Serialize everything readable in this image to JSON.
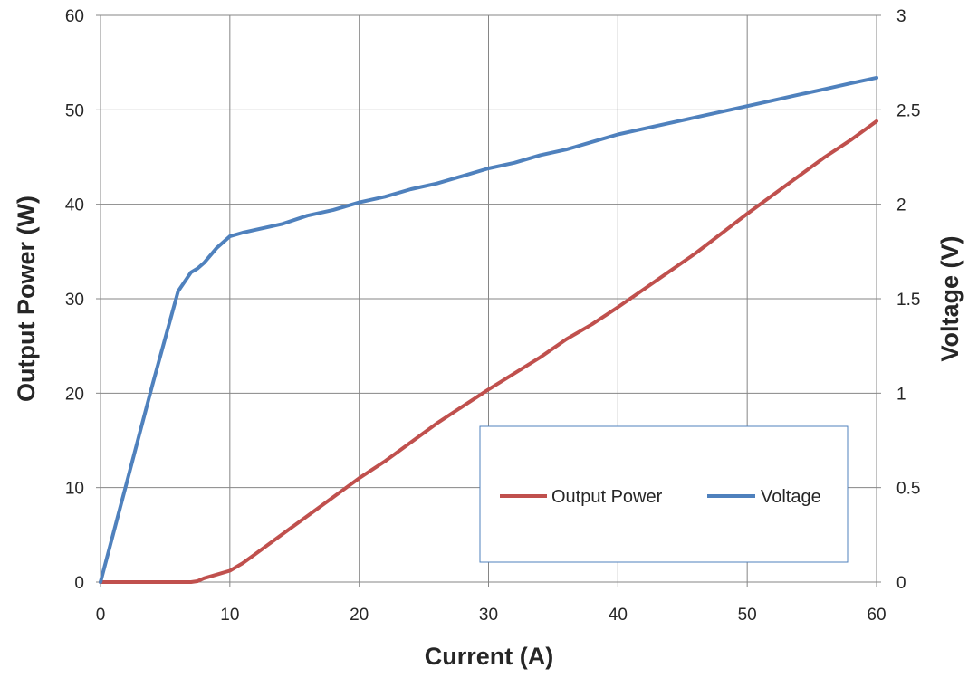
{
  "chart_data": {
    "type": "line",
    "xlabel": "Current (A)",
    "ylabel": "Output Power (W)",
    "y2label": "Voltage (V)",
    "xlim": [
      0,
      60
    ],
    "ylim": [
      0,
      60
    ],
    "y2lim": [
      0,
      3
    ],
    "xticks": [
      "0",
      "10",
      "20",
      "30",
      "40",
      "50",
      "60"
    ],
    "yticks": [
      "0",
      "10",
      "20",
      "30",
      "40",
      "50",
      "60"
    ],
    "y2ticks": [
      "0",
      "0.5",
      "1",
      "1.5",
      "2",
      "2.5",
      "3"
    ],
    "grid": true,
    "legend_position": "bottom-right",
    "series": [
      {
        "name": "Output Power",
        "axis": "left",
        "color": "#C0504D",
        "x": [
          0,
          2,
          4,
          6,
          7,
          7.5,
          8,
          9,
          10,
          11,
          12,
          14,
          16,
          18,
          20,
          22,
          24,
          26,
          28,
          30,
          32,
          34,
          36,
          38,
          40,
          42,
          44,
          46,
          48,
          50,
          52,
          54,
          56,
          58,
          60
        ],
        "y": [
          0,
          0,
          0,
          0,
          0,
          0.1,
          0.4,
          0.8,
          1.2,
          2.0,
          3.0,
          5.0,
          7.0,
          9.0,
          11.0,
          12.8,
          14.8,
          16.8,
          18.6,
          20.4,
          22.1,
          23.8,
          25.7,
          27.3,
          29.1,
          31.0,
          32.9,
          34.8,
          36.9,
          39.0,
          41.0,
          43.0,
          45.0,
          46.8,
          48.8
        ]
      },
      {
        "name": "Voltage",
        "axis": "right",
        "color": "#4F81BD",
        "x": [
          0,
          1,
          2,
          3,
          4,
          5,
          6,
          7,
          7.5,
          8,
          9,
          10,
          11,
          12,
          14,
          16,
          18,
          20,
          22,
          24,
          26,
          28,
          30,
          32,
          34,
          36,
          38,
          40,
          42,
          44,
          46,
          48,
          50,
          52,
          54,
          56,
          58,
          60
        ],
        "y": [
          0,
          0.26,
          0.52,
          0.78,
          1.04,
          1.29,
          1.54,
          1.64,
          1.66,
          1.69,
          1.77,
          1.83,
          1.85,
          1.865,
          1.895,
          1.94,
          1.97,
          2.01,
          2.04,
          2.08,
          2.11,
          2.15,
          2.19,
          2.22,
          2.26,
          2.29,
          2.33,
          2.37,
          2.4,
          2.43,
          2.46,
          2.49,
          2.52,
          2.55,
          2.58,
          2.61,
          2.64,
          2.67
        ]
      }
    ]
  }
}
